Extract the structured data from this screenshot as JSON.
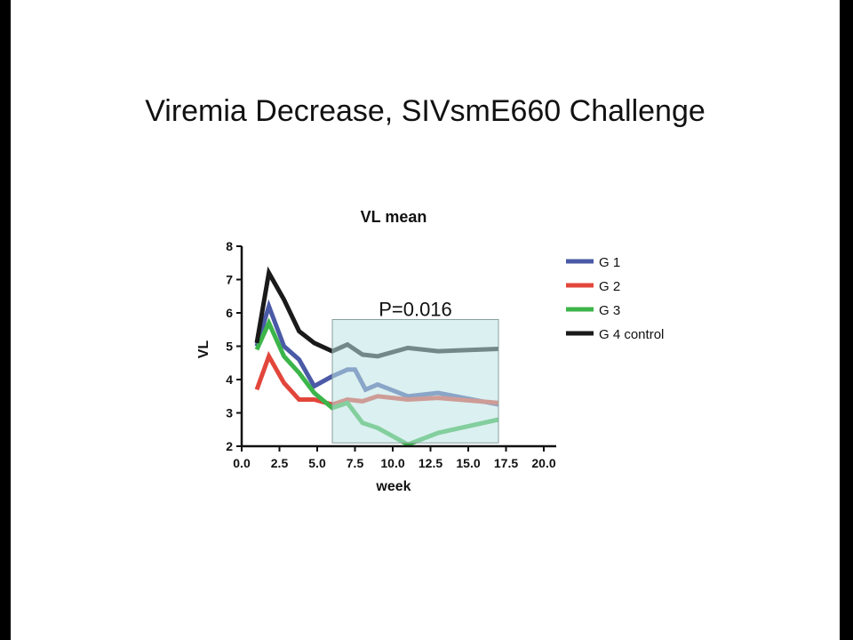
{
  "slide": {
    "title": "Viremia Decrease, SIVsmE660 Challenge",
    "background": "#ffffff",
    "frame": "#000000"
  },
  "chart_data": {
    "type": "line",
    "title": "VL mean",
    "xlabel": "week",
    "ylabel": "VL",
    "xlim": [
      0,
      20
    ],
    "ylim": [
      2,
      8
    ],
    "xticks": [
      "0.0",
      "2.5",
      "5.0",
      "7.5",
      "10.0",
      "12.5",
      "15.0",
      "17.5",
      "20.0"
    ],
    "yticks": [
      "2",
      "3",
      "4",
      "5",
      "6",
      "7",
      "8"
    ],
    "grid": false,
    "legend_position": "right",
    "annotation": {
      "text": "P=0.016",
      "region_x": [
        6,
        17
      ],
      "region_y": [
        2.1,
        5.8
      ],
      "color": "#bde3e3"
    },
    "series": [
      {
        "name": "G 1",
        "color": "#4a5aa6",
        "points": [
          [
            1,
            5.0
          ],
          [
            1.8,
            6.2
          ],
          [
            2.8,
            5.0
          ],
          [
            3.8,
            4.6
          ],
          [
            4.8,
            3.8
          ],
          [
            6,
            4.1
          ],
          [
            7,
            4.3
          ],
          [
            7.5,
            4.3
          ],
          [
            8.2,
            3.7
          ],
          [
            9,
            3.85
          ],
          [
            11,
            3.5
          ],
          [
            13,
            3.6
          ],
          [
            17,
            3.25
          ]
        ]
      },
      {
        "name": "G 2",
        "color": "#e2463b",
        "points": [
          [
            1,
            3.7
          ],
          [
            1.8,
            4.7
          ],
          [
            2.8,
            3.9
          ],
          [
            3.8,
            3.4
          ],
          [
            4.8,
            3.4
          ],
          [
            6,
            3.25
          ],
          [
            7,
            3.4
          ],
          [
            8,
            3.35
          ],
          [
            9,
            3.5
          ],
          [
            11,
            3.4
          ],
          [
            13,
            3.45
          ],
          [
            17,
            3.3
          ]
        ]
      },
      {
        "name": "G 3",
        "color": "#3cb54a",
        "points": [
          [
            1,
            4.9
          ],
          [
            1.8,
            5.7
          ],
          [
            2.8,
            4.7
          ],
          [
            3.8,
            4.2
          ],
          [
            4.8,
            3.6
          ],
          [
            6,
            3.15
          ],
          [
            7,
            3.3
          ],
          [
            8,
            2.7
          ],
          [
            9,
            2.55
          ],
          [
            11,
            2.05
          ],
          [
            13,
            2.4
          ],
          [
            17,
            2.8
          ]
        ]
      },
      {
        "name": "G 4 control",
        "color": "#1a1a1a",
        "points": [
          [
            1,
            5.1
          ],
          [
            1.8,
            7.2
          ],
          [
            2.8,
            6.4
          ],
          [
            3.8,
            5.45
          ],
          [
            4.8,
            5.1
          ],
          [
            6,
            4.85
          ],
          [
            7,
            5.05
          ],
          [
            8,
            4.75
          ],
          [
            9,
            4.7
          ],
          [
            11,
            4.95
          ],
          [
            13,
            4.85
          ],
          [
            17,
            4.92
          ]
        ]
      }
    ]
  }
}
